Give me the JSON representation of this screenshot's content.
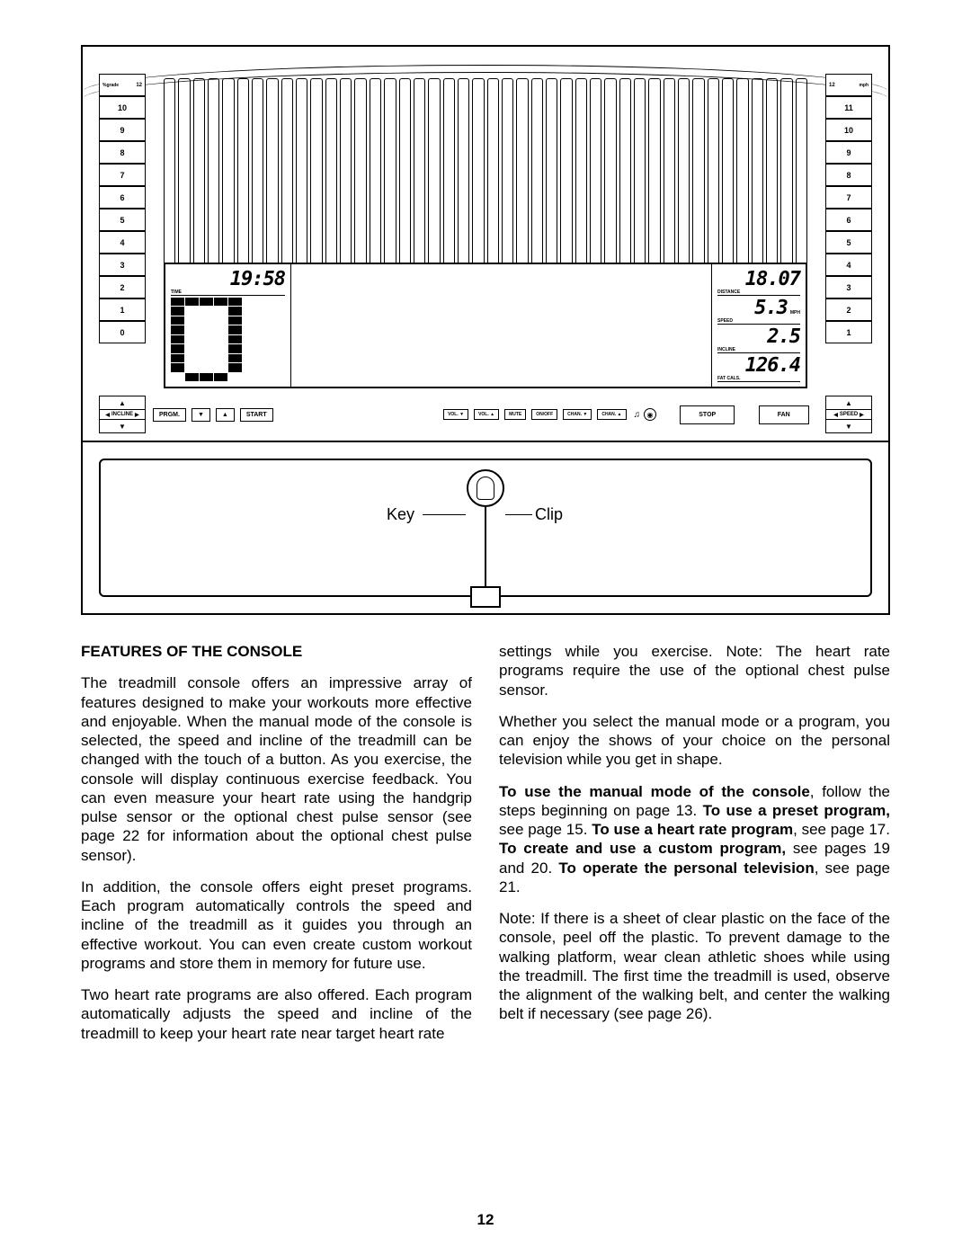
{
  "diagram": {
    "ladder_left": {
      "header_label": "%grade",
      "header_val": "12",
      "unit": "",
      "cells": [
        "10",
        "9",
        "8",
        "7",
        "6",
        "5",
        "4",
        "3",
        "2",
        "1",
        "0"
      ]
    },
    "ladder_right": {
      "header_label": "",
      "header_val": "12",
      "unit": "mph",
      "cells": [
        "11",
        "10",
        "9",
        "8",
        "7",
        "6",
        "5",
        "4",
        "3",
        "2",
        "1"
      ]
    },
    "left_arrow_label": "INCLINE",
    "right_arrow_label": "SPEED",
    "buttons_left": [
      "PRGM.",
      "▼",
      "▲",
      "START"
    ],
    "buttons_tiny": [
      "VOL. ▼",
      "VOL. ▲",
      "MUTE",
      "ON/OFF",
      "CHAN. ▼",
      "CHAN. ▲"
    ],
    "buttons_right": [
      "STOP",
      "FAN"
    ],
    "lcd_left": {
      "time_label": "TIME",
      "time_value": "19:58"
    },
    "lcd_right": {
      "distance_label": "DISTANCE",
      "distance_value": "18.07",
      "speed_label": "SPEED",
      "speed_value": "5.3",
      "speed_unit": "MPH",
      "incline_label": "INCLINE",
      "incline_value": "2.5",
      "fatcals_label": "FAT CALS.",
      "fatcals_value": "126.4"
    },
    "bar_pattern": [
      [
        1,
        1,
        1,
        1,
        1,
        0,
        0,
        0
      ],
      [
        1,
        0,
        0,
        0,
        1,
        0,
        0,
        0
      ],
      [
        1,
        0,
        0,
        0,
        1,
        0,
        0,
        0
      ],
      [
        1,
        0,
        0,
        0,
        1,
        0,
        0,
        0
      ],
      [
        1,
        0,
        0,
        0,
        1,
        0,
        0,
        0
      ],
      [
        1,
        0,
        0,
        0,
        1,
        0,
        0,
        0
      ],
      [
        1,
        0,
        0,
        0,
        1,
        0,
        0,
        0
      ],
      [
        1,
        0,
        0,
        0,
        1,
        0,
        0,
        0
      ],
      [
        0,
        1,
        1,
        1,
        0,
        0,
        0,
        0
      ]
    ],
    "key_label": "Key",
    "clip_label": "Clip",
    "vent_count": 44
  },
  "text": {
    "heading": "FEATURES OF THE CONSOLE",
    "left_paras": [
      "The treadmill console offers an impressive array of features designed to make your workouts more effective and enjoyable. When the manual mode of the console is selected, the speed and incline of the treadmill can be changed with the touch of a button. As you exercise, the console will display continuous exercise feedback. You can even measure your heart rate using the handgrip pulse sensor or the optional chest pulse sensor (see page 22 for information about the optional chest pulse sensor).",
      "In addition, the console offers eight preset programs. Each program automatically controls the speed and incline of the treadmill as it guides you through an effective workout. You can even create custom workout programs and store them in memory for future use.",
      "Two heart rate programs are also offered. Each program automatically adjusts the speed and incline of the treadmill to keep your heart rate near target heart rate"
    ],
    "right_paras": [
      "settings while you exercise. Note: The heart rate programs require the use of the optional chest pulse sensor.",
      "Whether you select the manual mode or a program, you can enjoy the shows of your choice on the personal television while you get in shape.",
      "<b>To use the manual mode of the console</b>, follow the steps beginning on page 13. <b>To use a preset program,</b> see page 15. <b>To use a heart rate program</b>, see page 17. <b>To create and use a custom program,</b> see pages 19 and 20. <b>To operate the personal television</b>, see page 21.",
      "Note: If there is a sheet of clear plastic on the face of the console, peel off the plastic. To prevent damage to the walking platform, wear clean athletic shoes while using the treadmill. The first time the treadmill is used, observe the alignment of the walking belt, and center the walking belt if necessary (see page 26)."
    ]
  },
  "page_number": "12"
}
